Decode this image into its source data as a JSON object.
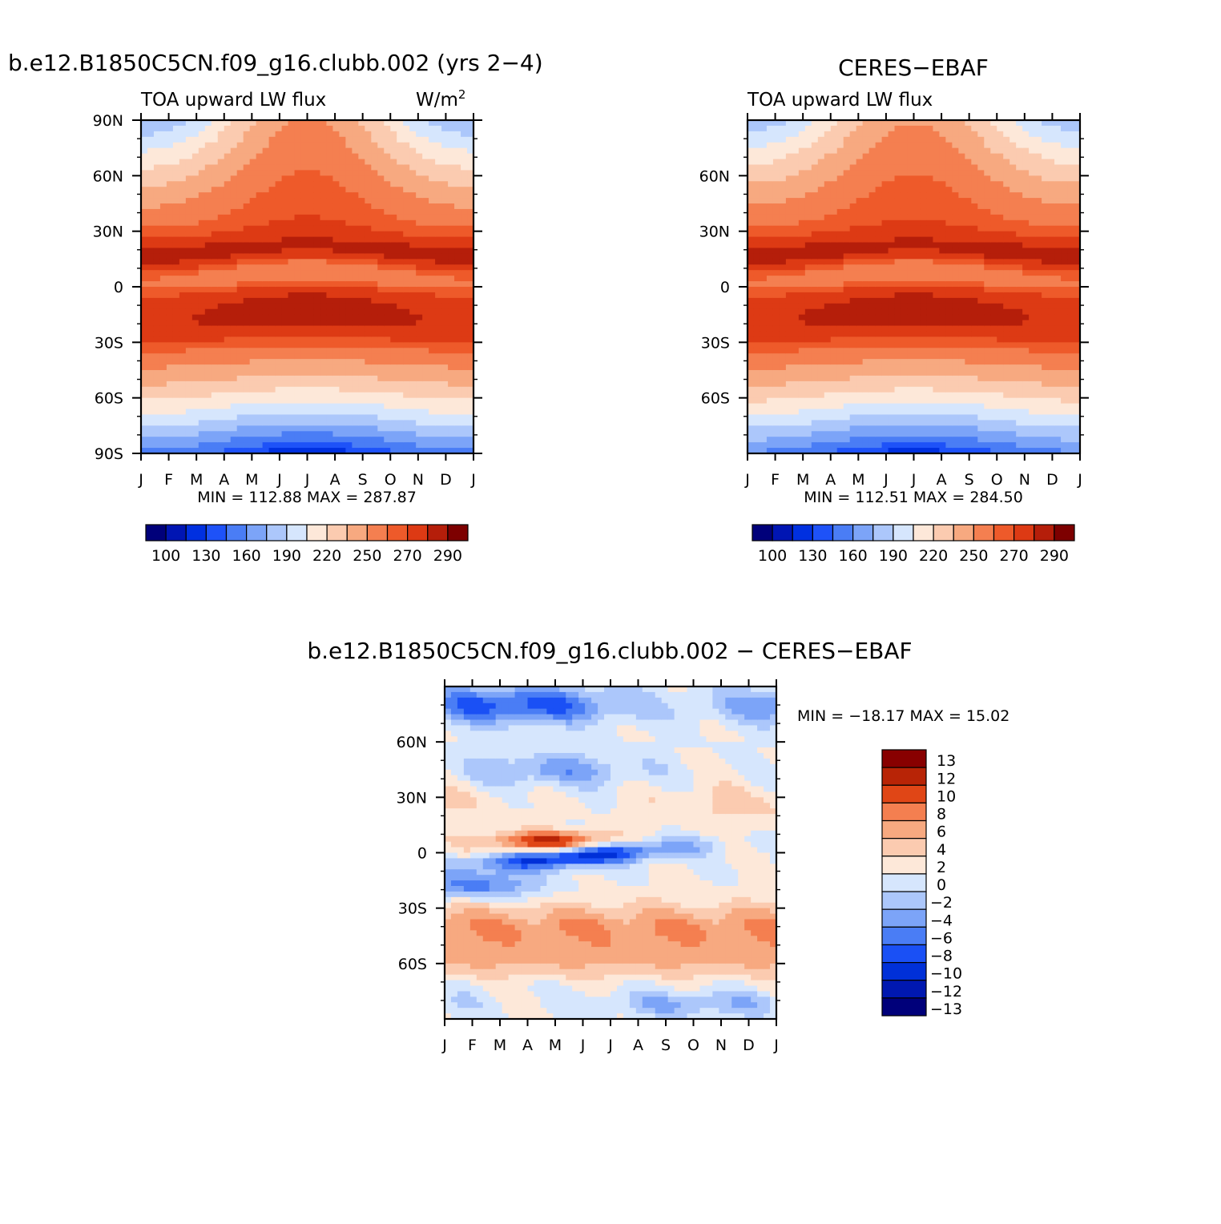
{
  "chart_data": [
    {
      "type": "heatmap",
      "title": "b.e12.B1850C5CN.f09_g16.clubb.002 (yrs 2−4)",
      "variable": "TOA upward LW flux",
      "units": "W/m",
      "units_sup": "2",
      "x_ticks": [
        "J",
        "F",
        "M",
        "A",
        "M",
        "J",
        "J",
        "A",
        "S",
        "O",
        "N",
        "D",
        "J"
      ],
      "y_ticks": [
        "90N",
        "60N",
        "30N",
        "0",
        "30S",
        "60S",
        "90S"
      ],
      "y_range": [
        -90,
        90
      ],
      "stats": "MIN =  112.88  MAX =  287.87",
      "colorbar_labels": [
        "100",
        "130",
        "160",
        "190",
        "220",
        "250",
        "270",
        "290"
      ],
      "field": {
        "pole_n": 170,
        "pole_s": 125,
        "jan_north": 160,
        "jul_north": 236,
        "jan_south": 140,
        "jul_south": 112
      }
    },
    {
      "type": "heatmap",
      "title": "CERES−EBAF",
      "variable": "TOA upward LW flux",
      "y_ticks": [
        "60N",
        "30N",
        "0",
        "30S",
        "60S"
      ],
      "x_ticks": [
        "J",
        "F",
        "M",
        "A",
        "M",
        "J",
        "J",
        "A",
        "S",
        "O",
        "N",
        "D",
        "J"
      ],
      "y_range": [
        -90,
        90
      ],
      "stats": "MIN =  112.51  MAX =  284.50",
      "colorbar_labels": [
        "100",
        "130",
        "160",
        "190",
        "220",
        "250",
        "270",
        "290"
      ],
      "field": {
        "pole_n": 172,
        "pole_s": 127,
        "jan_north": 165,
        "jul_north": 234,
        "jan_south": 142,
        "jul_south": 114
      }
    },
    {
      "type": "heatmap",
      "title": "b.e12.B1850C5CN.f09_g16.clubb.002  −  CERES−EBAF",
      "y_ticks": [
        "60N",
        "30N",
        "0",
        "30S",
        "60S"
      ],
      "x_ticks": [
        "J",
        "F",
        "M",
        "A",
        "M",
        "J",
        "J",
        "A",
        "S",
        "O",
        "N",
        "D",
        "J"
      ],
      "y_range": [
        -90,
        90
      ],
      "stats": "MIN = −18.17  MAX =   15.02",
      "colorbar_labels": [
        "13",
        "12",
        "10",
        "8",
        "6",
        "4",
        "2",
        "0",
        "−2",
        "−4",
        "−6",
        "−8",
        "−10",
        "−12",
        "−13"
      ]
    }
  ],
  "colors": {
    "absolute_levels": [
      "#00007a",
      "#0015b3",
      "#0030e0",
      "#1e52f8",
      "#4a7df5",
      "#7ca4f8",
      "#acc7fb",
      "#d6e6fd",
      "#fde8d9",
      "#fbcbb0",
      "#f7a980",
      "#f47f50",
      "#ee5a2a",
      "#dd3a14",
      "#b51e0a",
      "#7d0000"
    ],
    "difference_levels": [
      "#00007a",
      "#0018b0",
      "#0030d8",
      "#1a50f5",
      "#4a7df5",
      "#7ca4f8",
      "#acc7fb",
      "#d6e6fd",
      "#fde8d9",
      "#fbcbb0",
      "#f7a980",
      "#f47f50",
      "#e04616",
      "#b82406",
      "#880000"
    ]
  }
}
